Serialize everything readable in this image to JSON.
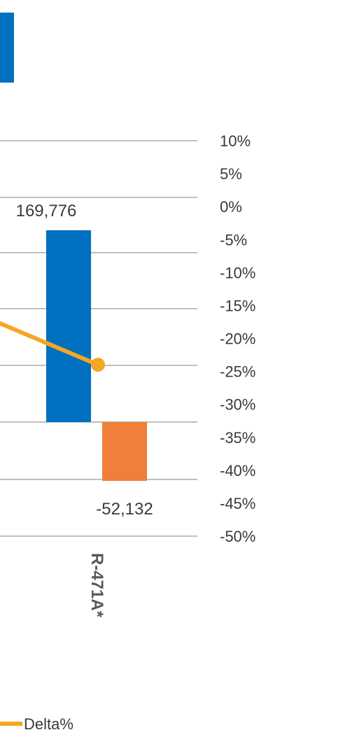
{
  "chart_data": {
    "type": "bar",
    "categories": [
      "R-471A*"
    ],
    "y2_axis": {
      "min": -0.5,
      "max": 0.1,
      "ticks": [
        0.1,
        0.05,
        0.0,
        -0.05,
        -0.1,
        -0.15,
        -0.2,
        -0.25,
        -0.3,
        -0.35,
        -0.4,
        -0.45,
        -0.5
      ],
      "tick_labels": [
        "10%",
        "5%",
        "0%",
        "-5%",
        "-10%",
        "-15%",
        "-20%",
        "-25%",
        "-30%",
        "-35%",
        "-40%",
        "-45%",
        "-50%"
      ]
    },
    "bar_series": [
      {
        "values": [
          169776
        ],
        "value_labels": [
          "169,776"
        ],
        "color": "#0070C0"
      },
      {
        "values": [
          -52132
        ],
        "value_labels": [
          "-52,132"
        ],
        "color": "#F07F3C"
      }
    ],
    "line_series": {
      "name": "Delta%",
      "values": [
        -0.24
      ],
      "color": "#F5A623",
      "axis": "secondary"
    },
    "legend": {
      "position": "bottom",
      "items": [
        {
          "label": "Delta%",
          "color": "#F5A623",
          "marker": "line"
        }
      ]
    },
    "grid": true,
    "cropped_top_left_bar_color": "#0070C0"
  }
}
